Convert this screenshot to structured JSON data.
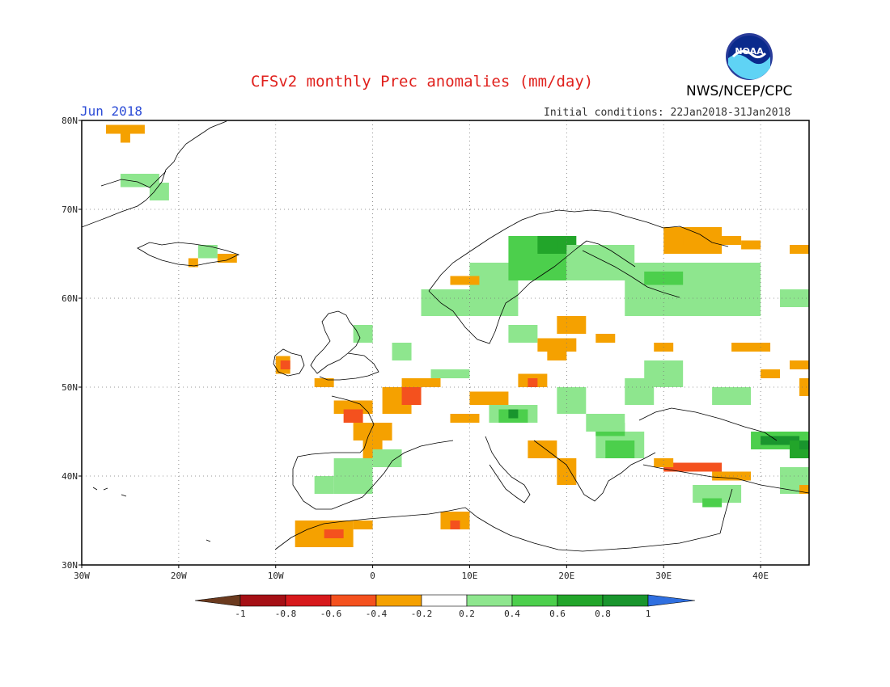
{
  "header": {
    "title": "CFSv2 monthly Prec anomalies (mm/day)",
    "period": "Jun 2018",
    "initial_conditions": "Initial conditions: 22Jan2018-31Jan2018",
    "agency": "NWS/NCEP/CPC",
    "logo_text": "NOAA"
  },
  "map": {
    "projection": "lat-lon",
    "lon_range": [
      -30,
      45
    ],
    "lat_range": [
      30,
      80
    ],
    "grid": "dotted",
    "lat_labels": [
      "30N",
      "40N",
      "50N",
      "60N",
      "70N",
      "80N"
    ],
    "lon_labels": [
      "30W",
      "20W",
      "10W",
      "0",
      "10E",
      "20E",
      "30E",
      "40E"
    ],
    "anomaly_cells": [
      {
        "lon": -27.5,
        "lat": 78.5,
        "lon2": -23.5,
        "lat2": 79.5,
        "class": "a-0.4"
      },
      {
        "lon": -26,
        "lat": 77.5,
        "lon2": -25,
        "lat2": 78.5,
        "class": "a-0.4"
      },
      {
        "lon": -26,
        "lat": 72.5,
        "lon2": -22,
        "lat2": 74,
        "class": "p0.4"
      },
      {
        "lon": -23,
        "lat": 71,
        "lon2": -21,
        "lat2": 73,
        "class": "p0.4"
      },
      {
        "lon": -18,
        "lat": 64.5,
        "lon2": -16,
        "lat2": 66,
        "class": "p0.4"
      },
      {
        "lon": -19,
        "lat": 63.5,
        "lon2": -18,
        "lat2": 64.5,
        "class": "a-0.4"
      },
      {
        "lon": -16,
        "lat": 64,
        "lon2": -14,
        "lat2": 65,
        "class": "a-0.4"
      },
      {
        "lon": -10,
        "lat": 51.5,
        "lon2": -8.5,
        "lat2": 53.5,
        "class": "a-0.4"
      },
      {
        "lon": -9.5,
        "lat": 52,
        "lon2": -8.5,
        "lat2": 53,
        "class": "a-0.6"
      },
      {
        "lon": -6,
        "lat": 50,
        "lon2": -4,
        "lat2": 51,
        "class": "a-0.4"
      },
      {
        "lon": -4,
        "lat": 47,
        "lon2": 0,
        "lat2": 48.5,
        "class": "a-0.4"
      },
      {
        "lon": -3,
        "lat": 46,
        "lon2": -1,
        "lat2": 47.5,
        "class": "a-0.6"
      },
      {
        "lon": -2,
        "lat": 44,
        "lon2": 2,
        "lat2": 46,
        "class": "a-0.4"
      },
      {
        "lon": -1,
        "lat": 42,
        "lon2": 1,
        "lat2": 44,
        "class": "a-0.4"
      },
      {
        "lon": 1,
        "lat": 47,
        "lon2": 4,
        "lat2": 50,
        "class": "a-0.4"
      },
      {
        "lon": 3,
        "lat": 48,
        "lon2": 5,
        "lat2": 50,
        "class": "a-0.6"
      },
      {
        "lon": 3,
        "lat": 50,
        "lon2": 7,
        "lat2": 51,
        "class": "a-0.4"
      },
      {
        "lon": 0,
        "lat": 41,
        "lon2": 3,
        "lat2": 43,
        "class": "p0.4"
      },
      {
        "lon": -4,
        "lat": 38,
        "lon2": 0,
        "lat2": 42,
        "class": "p0.4"
      },
      {
        "lon": -6,
        "lat": 38,
        "lon2": -4,
        "lat2": 40,
        "class": "p0.4"
      },
      {
        "lon": -8,
        "lat": 32,
        "lon2": -2,
        "lat2": 35,
        "class": "a-0.4"
      },
      {
        "lon": -5,
        "lat": 33,
        "lon2": -3,
        "lat2": 34,
        "class": "a-0.6"
      },
      {
        "lon": -2,
        "lat": 34,
        "lon2": 0,
        "lat2": 35,
        "class": "a-0.4"
      },
      {
        "lon": 7,
        "lat": 34,
        "lon2": 10,
        "lat2": 36,
        "class": "a-0.4"
      },
      {
        "lon": 8,
        "lat": 34,
        "lon2": 9,
        "lat2": 35,
        "class": "a-0.6"
      },
      {
        "lon": 10,
        "lat": 48,
        "lon2": 14,
        "lat2": 49.5,
        "class": "a-0.4"
      },
      {
        "lon": 15,
        "lat": 50,
        "lon2": 18,
        "lat2": 51.5,
        "class": "a-0.4"
      },
      {
        "lon": 16,
        "lat": 50,
        "lon2": 17,
        "lat2": 51,
        "class": "a-0.6"
      },
      {
        "lon": 8,
        "lat": 46,
        "lon2": 11,
        "lat2": 47,
        "class": "a-0.4"
      },
      {
        "lon": 12,
        "lat": 46,
        "lon2": 17,
        "lat2": 48,
        "class": "p0.4"
      },
      {
        "lon": 13,
        "lat": 46,
        "lon2": 16,
        "lat2": 47.5,
        "class": "p0.6"
      },
      {
        "lon": 14,
        "lat": 46.5,
        "lon2": 15,
        "lat2": 47.5,
        "class": "p1"
      },
      {
        "lon": 16,
        "lat": 42,
        "lon2": 19,
        "lat2": 44,
        "class": "a-0.4"
      },
      {
        "lon": 19,
        "lat": 39,
        "lon2": 21,
        "lat2": 42,
        "class": "a-0.4"
      },
      {
        "lon": 17,
        "lat": 54,
        "lon2": 21,
        "lat2": 55.5,
        "class": "a-0.4"
      },
      {
        "lon": 18,
        "lat": 53,
        "lon2": 20,
        "lat2": 54,
        "class": "a-0.4"
      },
      {
        "lon": 23,
        "lat": 42,
        "lon2": 28,
        "lat2": 45,
        "class": "p0.4"
      },
      {
        "lon": 24,
        "lat": 42,
        "lon2": 27,
        "lat2": 44,
        "class": "p0.6"
      },
      {
        "lon": 23,
        "lat": 44.5,
        "lon2": 26,
        "lat2": 46,
        "class": "p0.6"
      },
      {
        "lon": 22,
        "lat": 45,
        "lon2": 26,
        "lat2": 47,
        "class": "p0.4"
      },
      {
        "lon": 19,
        "lat": 47,
        "lon2": 22,
        "lat2": 50,
        "class": "p0.4"
      },
      {
        "lon": 26,
        "lat": 48,
        "lon2": 29,
        "lat2": 51,
        "class": "p0.4"
      },
      {
        "lon": 28,
        "lat": 50,
        "lon2": 32,
        "lat2": 53,
        "class": "p0.4"
      },
      {
        "lon": 29,
        "lat": 54,
        "lon2": 31,
        "lat2": 55,
        "class": "a-0.4"
      },
      {
        "lon": 37,
        "lat": 54,
        "lon2": 41,
        "lat2": 55,
        "class": "a-0.4"
      },
      {
        "lon": 40,
        "lat": 51,
        "lon2": 42,
        "lat2": 52,
        "class": "a-0.4"
      },
      {
        "lon": 43,
        "lat": 52,
        "lon2": 45,
        "lat2": 53,
        "class": "a-0.4"
      },
      {
        "lon": 44,
        "lat": 49,
        "lon2": 45,
        "lat2": 51,
        "class": "a-0.4"
      },
      {
        "lon": 35,
        "lat": 48,
        "lon2": 39,
        "lat2": 50,
        "class": "p0.4"
      },
      {
        "lon": 30,
        "lat": 40.5,
        "lon2": 36,
        "lat2": 41.5,
        "class": "a-0.6"
      },
      {
        "lon": 29,
        "lat": 41,
        "lon2": 31,
        "lat2": 42,
        "class": "a-0.4"
      },
      {
        "lon": 35,
        "lat": 39.5,
        "lon2": 39,
        "lat2": 40.5,
        "class": "a-0.4"
      },
      {
        "lon": 33,
        "lat": 37,
        "lon2": 38,
        "lat2": 39,
        "class": "p0.4"
      },
      {
        "lon": 34,
        "lat": 36.5,
        "lon2": 36,
        "lat2": 37.5,
        "class": "p0.6"
      },
      {
        "lon": 39,
        "lat": 43,
        "lon2": 45,
        "lat2": 45,
        "class": "p0.6"
      },
      {
        "lon": 40,
        "lat": 43.5,
        "lon2": 44,
        "lat2": 44.5,
        "class": "p1"
      },
      {
        "lon": 43,
        "lat": 42,
        "lon2": 45,
        "lat2": 44,
        "class": "p0.8"
      },
      {
        "lon": 44,
        "lat": 43,
        "lon2": 45,
        "lat2": 44,
        "class": "p1"
      },
      {
        "lon": 42,
        "lat": 38,
        "lon2": 45,
        "lat2": 41,
        "class": "p0.4"
      },
      {
        "lon": 44,
        "lat": 38,
        "lon2": 45,
        "lat2": 39,
        "class": "a-0.4"
      },
      {
        "lon": 10,
        "lat": 58,
        "lon2": 15,
        "lat2": 64,
        "class": "p0.4"
      },
      {
        "lon": 14,
        "lat": 62,
        "lon2": 20,
        "lat2": 67,
        "class": "p0.6"
      },
      {
        "lon": 17,
        "lat": 65,
        "lon2": 20,
        "lat2": 67,
        "class": "p0.8"
      },
      {
        "lon": 19,
        "lat": 65.5,
        "lon2": 21,
        "lat2": 67,
        "class": "p0.8"
      },
      {
        "lon": 20,
        "lat": 62,
        "lon2": 27,
        "lat2": 66,
        "class": "p0.4"
      },
      {
        "lon": 5,
        "lat": 58,
        "lon2": 10,
        "lat2": 61,
        "class": "p0.4"
      },
      {
        "lon": 8,
        "lat": 61.5,
        "lon2": 11,
        "lat2": 62.5,
        "class": "a-0.4"
      },
      {
        "lon": 26,
        "lat": 58,
        "lon2": 40,
        "lat2": 64,
        "class": "p0.4"
      },
      {
        "lon": 28,
        "lat": 61.5,
        "lon2": 32,
        "lat2": 63,
        "class": "p0.6"
      },
      {
        "lon": 30,
        "lat": 65,
        "lon2": 36,
        "lat2": 68,
        "class": "a-0.4"
      },
      {
        "lon": 32,
        "lat": 66,
        "lon2": 38,
        "lat2": 67,
        "class": "a-0.4"
      },
      {
        "lon": 38,
        "lat": 65.5,
        "lon2": 40,
        "lat2": 66.5,
        "class": "a-0.4"
      },
      {
        "lon": 43,
        "lat": 65,
        "lon2": 45,
        "lat2": 66,
        "class": "a-0.4"
      },
      {
        "lon": 42,
        "lat": 59,
        "lon2": 45,
        "lat2": 61,
        "class": "p0.4"
      },
      {
        "lon": 2,
        "lat": 53,
        "lon2": 4,
        "lat2": 55,
        "class": "p0.4"
      },
      {
        "lon": -2,
        "lat": 55,
        "lon2": 0,
        "lat2": 57,
        "class": "p0.4"
      },
      {
        "lon": 6,
        "lat": 51,
        "lon2": 10,
        "lat2": 52,
        "class": "p0.4"
      },
      {
        "lon": 19,
        "lat": 56,
        "lon2": 22,
        "lat2": 58,
        "class": "a-0.4"
      },
      {
        "lon": 14,
        "lat": 55,
        "lon2": 17,
        "lat2": 57,
        "class": "p0.4"
      },
      {
        "lon": 23,
        "lat": 55,
        "lon2": 25,
        "lat2": 56,
        "class": "a-0.4"
      }
    ]
  },
  "colorbar": {
    "ticks": [
      "-1",
      "-0.8",
      "-0.6",
      "-0.4",
      "-0.2",
      "0.2",
      "0.4",
      "0.6",
      "0.8",
      "1"
    ],
    "colors": {
      "below_min": "#6b3a1e",
      "a-1": "#a50f15",
      "a-0.8": "#d7191c",
      "a-0.6": "#f4511e",
      "a-0.4": "#f5a100",
      "neutral": "#ffffff",
      "p0.4": "#8ee68e",
      "p0.6": "#4ccf4c",
      "p0.8": "#22a52a",
      "p1": "#19952d",
      "above_max": "#2f6fe0"
    }
  }
}
